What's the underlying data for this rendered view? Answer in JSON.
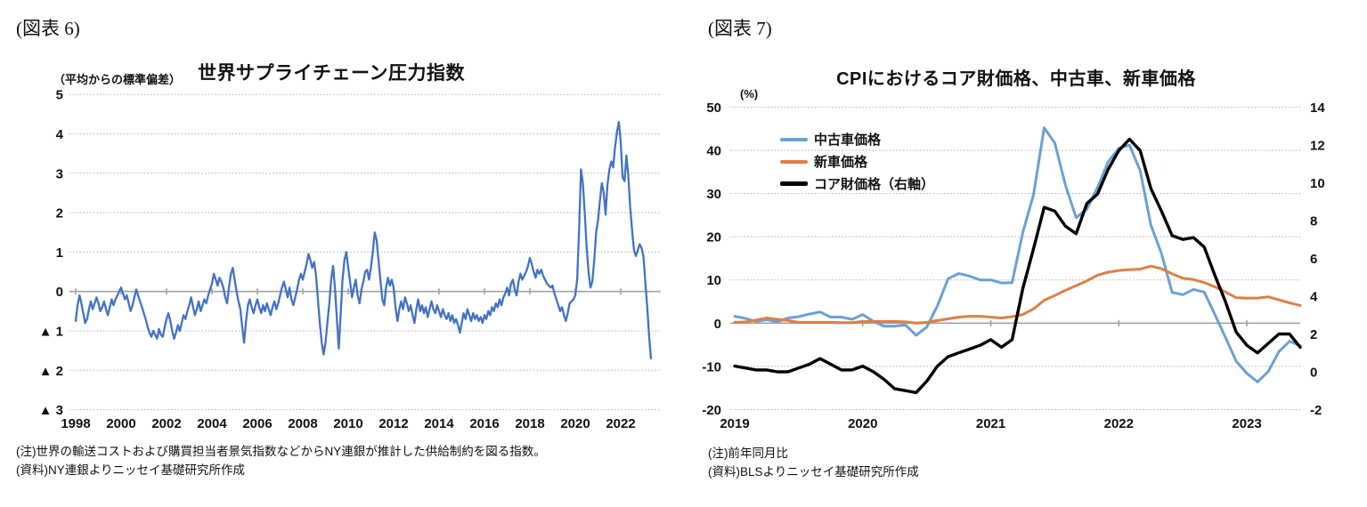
{
  "fig6": {
    "label": "(図表 6)",
    "axis_note": "（平均からの標準偏差）",
    "title": "世界サプライチェーン圧力指数",
    "note1": "(注)世界の輸送コストおよび購買担当者景気指数などからNY連銀が推計した供給制約を図る指数。",
    "note2": "(資料)NY連銀よりニッセイ基礎研究所作成"
  },
  "fig7": {
    "label": "(図表 7)",
    "title": "CPIにおけるコア財価格、中古車、新車価格",
    "unit": "(%)",
    "legend": [
      "中古車価格",
      "新車価格",
      "コア財価格（右軸）"
    ],
    "note1": "(注)前年同月比",
    "note2": "(資料)BLSよりニッセイ基礎研究所作成"
  },
  "chart_data": [
    {
      "id": "gscpi",
      "type": "line",
      "title": "世界サプライチェーン圧力指数",
      "ylabel": "平均からの標準偏差",
      "frequency": "monthly",
      "x_start": "1998-01",
      "x_end": "2023-05",
      "ylim": [
        -3,
        5
      ],
      "grid": true,
      "yticks": [
        5,
        4,
        3,
        2,
        1,
        0,
        -1,
        -2,
        -3
      ],
      "ytick_labels": [
        "5",
        "4",
        "3",
        "2",
        "1",
        "0",
        "▲ 1",
        "▲ 2",
        "▲ 3"
      ],
      "xtick_labels": [
        "1998",
        "2000",
        "2002",
        "2004",
        "2006",
        "2008",
        "2010",
        "2012",
        "2014",
        "2016",
        "2018",
        "2020",
        "2022"
      ],
      "line_color": "#4472C4",
      "values": [
        -0.75,
        -0.35,
        -0.1,
        -0.3,
        -0.55,
        -0.8,
        -0.7,
        -0.45,
        -0.25,
        -0.45,
        -0.3,
        -0.15,
        -0.3,
        -0.5,
        -0.4,
        -0.25,
        -0.45,
        -0.6,
        -0.4,
        -0.2,
        -0.35,
        -0.2,
        -0.1,
        0.0,
        0.1,
        -0.05,
        -0.2,
        -0.1,
        -0.3,
        -0.5,
        -0.35,
        -0.15,
        0.05,
        -0.1,
        -0.25,
        -0.4,
        -0.55,
        -0.7,
        -0.9,
        -1.05,
        -1.15,
        -1.0,
        -1.1,
        -1.2,
        -0.95,
        -1.1,
        -1.15,
        -0.9,
        -0.7,
        -0.55,
        -0.75,
        -1.0,
        -1.2,
        -1.05,
        -0.85,
        -1.0,
        -0.8,
        -0.6,
        -0.7,
        -0.5,
        -0.35,
        -0.15,
        -0.4,
        -0.6,
        -0.45,
        -0.25,
        -0.5,
        -0.35,
        -0.2,
        -0.3,
        -0.1,
        0.05,
        0.2,
        0.45,
        0.3,
        0.15,
        0.35,
        0.25,
        0.1,
        -0.15,
        -0.3,
        0.1,
        0.45,
        0.6,
        0.3,
        0.0,
        -0.25,
        -0.45,
        -0.9,
        -1.3,
        -0.75,
        -0.35,
        -0.2,
        -0.4,
        -0.55,
        -0.35,
        -0.2,
        -0.4,
        -0.55,
        -0.35,
        -0.5,
        -0.3,
        -0.45,
        -0.6,
        -0.4,
        -0.25,
        -0.45,
        -0.3,
        -0.1,
        0.1,
        0.25,
        0.05,
        -0.15,
        0.1,
        -0.2,
        -0.35,
        -0.15,
        0.05,
        0.3,
        0.45,
        0.3,
        0.5,
        0.7,
        0.95,
        0.8,
        0.6,
        0.75,
        0.4,
        -0.2,
        -0.8,
        -1.3,
        -1.6,
        -1.3,
        -0.8,
        -0.3,
        0.3,
        0.65,
        0.1,
        -0.7,
        -1.45,
        -0.6,
        0.3,
        0.8,
        1.0,
        0.6,
        0.25,
        -0.15,
        0.1,
        0.3,
        -0.1,
        -0.3,
        0.05,
        0.25,
        0.5,
        0.55,
        0.3,
        0.6,
        1.0,
        1.5,
        1.3,
        0.8,
        0.3,
        -0.2,
        -0.35,
        0.1,
        0.35,
        0.15,
        0.3,
        0.1,
        -0.4,
        -0.75,
        -0.45,
        -0.25,
        -0.45,
        -0.15,
        -0.3,
        -0.5,
        -0.35,
        -0.6,
        -0.8,
        -0.45,
        -0.2,
        -0.5,
        -0.35,
        -0.55,
        -0.4,
        -0.65,
        -0.45,
        -0.25,
        -0.45,
        -0.55,
        -0.35,
        -0.5,
        -0.65,
        -0.45,
        -0.6,
        -0.7,
        -0.55,
        -0.75,
        -0.6,
        -0.8,
        -0.7,
        -0.85,
        -1.05,
        -0.8,
        -0.55,
        -0.7,
        -0.45,
        -0.6,
        -0.75,
        -0.55,
        -0.7,
        -0.6,
        -0.75,
        -0.65,
        -0.8,
        -0.6,
        -0.7,
        -0.5,
        -0.6,
        -0.4,
        -0.5,
        -0.3,
        -0.4,
        -0.2,
        -0.35,
        -0.15,
        -0.05,
        0.1,
        -0.1,
        0.2,
        0.3,
        0.05,
        -0.1,
        0.25,
        0.45,
        0.3,
        0.4,
        0.5,
        0.65,
        0.85,
        0.7,
        0.5,
        0.35,
        0.55,
        0.45,
        0.55,
        0.4,
        0.3,
        0.2,
        0.15,
        0.1,
        0.15,
        -0.05,
        -0.2,
        -0.35,
        -0.5,
        -0.4,
        -0.6,
        -0.75,
        -0.55,
        -0.3,
        -0.25,
        -0.2,
        -0.1,
        0.3,
        1.6,
        3.1,
        2.75,
        2.0,
        1.1,
        0.5,
        0.1,
        0.25,
        0.8,
        1.5,
        1.8,
        2.3,
        2.75,
        2.5,
        1.95,
        2.7,
        3.1,
        3.3,
        3.15,
        3.65,
        4.05,
        4.3,
        3.8,
        2.9,
        2.8,
        3.45,
        2.95,
        2.15,
        1.55,
        1.05,
        0.9,
        1.05,
        1.2,
        1.1,
        0.9,
        0.25,
        -0.4,
        -1.15,
        -1.7
      ]
    },
    {
      "id": "cpi-core-goods-autos",
      "type": "line",
      "title": "CPIにおけるコア財価格、中古車、新車価格",
      "unit": "%",
      "frequency": "monthly",
      "x_start": "2019-01",
      "x_end": "2023-06",
      "grid": true,
      "legend_position": "top-left",
      "left_ylim": [
        -20,
        50
      ],
      "right_ylim": [
        -2,
        14
      ],
      "left_yticks": [
        50,
        40,
        30,
        20,
        10,
        0,
        -10,
        -20
      ],
      "left_ytick_labels": [
        "50",
        "40",
        "30",
        "20",
        "10",
        "0",
        "-10",
        "-20"
      ],
      "right_yticks": [
        14,
        12,
        10,
        8,
        6,
        4,
        2,
        0,
        -2
      ],
      "right_ytick_labels": [
        "14",
        "12",
        "10",
        "8",
        "6",
        "4",
        "2",
        "0",
        "-2"
      ],
      "xtick_labels": [
        "2019",
        "2020",
        "2021",
        "2022",
        "2023"
      ],
      "series": [
        {
          "name": "中古車価格",
          "axis": "left",
          "color": "#6BA0D4",
          "values": [
            1.6,
            1.1,
            0.4,
            0.8,
            0.3,
            1.2,
            1.5,
            2.1,
            2.6,
            1.4,
            1.4,
            0.9,
            2.0,
            0.4,
            -0.7,
            -0.7,
            -0.4,
            -2.8,
            -0.9,
            4.0,
            10.3,
            11.5,
            10.9,
            10.0,
            10.0,
            9.3,
            9.4,
            21.0,
            29.7,
            45.2,
            41.7,
            31.9,
            24.4,
            26.4,
            31.4,
            37.3,
            40.5,
            41.2,
            35.3,
            22.7,
            16.1,
            7.1,
            6.6,
            7.8,
            7.2,
            2.0,
            -3.3,
            -8.8,
            -11.6,
            -13.6,
            -11.2,
            -6.6,
            -4.2,
            -5.2
          ]
        },
        {
          "name": "新車価格",
          "axis": "left",
          "color": "#DC8145",
          "values": [
            0.2,
            0.3,
            0.7,
            1.2,
            0.9,
            0.6,
            0.2,
            0.2,
            0.2,
            0.2,
            0.1,
            0.1,
            0.4,
            0.4,
            0.4,
            0.4,
            0.3,
            0.0,
            0.2,
            0.6,
            1.0,
            1.4,
            1.6,
            1.6,
            1.4,
            1.2,
            1.5,
            2.0,
            3.3,
            5.3,
            6.4,
            7.6,
            8.7,
            9.8,
            11.1,
            11.8,
            12.2,
            12.4,
            12.5,
            13.2,
            12.6,
            11.4,
            10.4,
            10.1,
            9.4,
            8.4,
            7.2,
            5.9,
            5.8,
            5.8,
            6.1,
            5.4,
            4.7,
            4.1
          ]
        },
        {
          "name": "コア財価格（右軸）",
          "axis": "right",
          "color": "#000000",
          "values": [
            0.3,
            0.2,
            0.1,
            0.1,
            0.0,
            0.0,
            0.2,
            0.4,
            0.7,
            0.4,
            0.1,
            0.1,
            0.3,
            0.0,
            -0.4,
            -0.9,
            -1.0,
            -1.1,
            -0.5,
            0.3,
            0.8,
            1.0,
            1.2,
            1.4,
            1.7,
            1.3,
            1.7,
            4.4,
            6.5,
            8.7,
            8.5,
            7.7,
            7.3,
            8.9,
            9.4,
            10.7,
            11.7,
            12.3,
            11.7,
            9.7,
            8.5,
            7.2,
            7.0,
            7.1,
            6.6,
            5.1,
            3.7,
            2.1,
            1.4,
            1.0,
            1.5,
            2.0,
            2.0,
            1.3
          ]
        }
      ]
    }
  ]
}
